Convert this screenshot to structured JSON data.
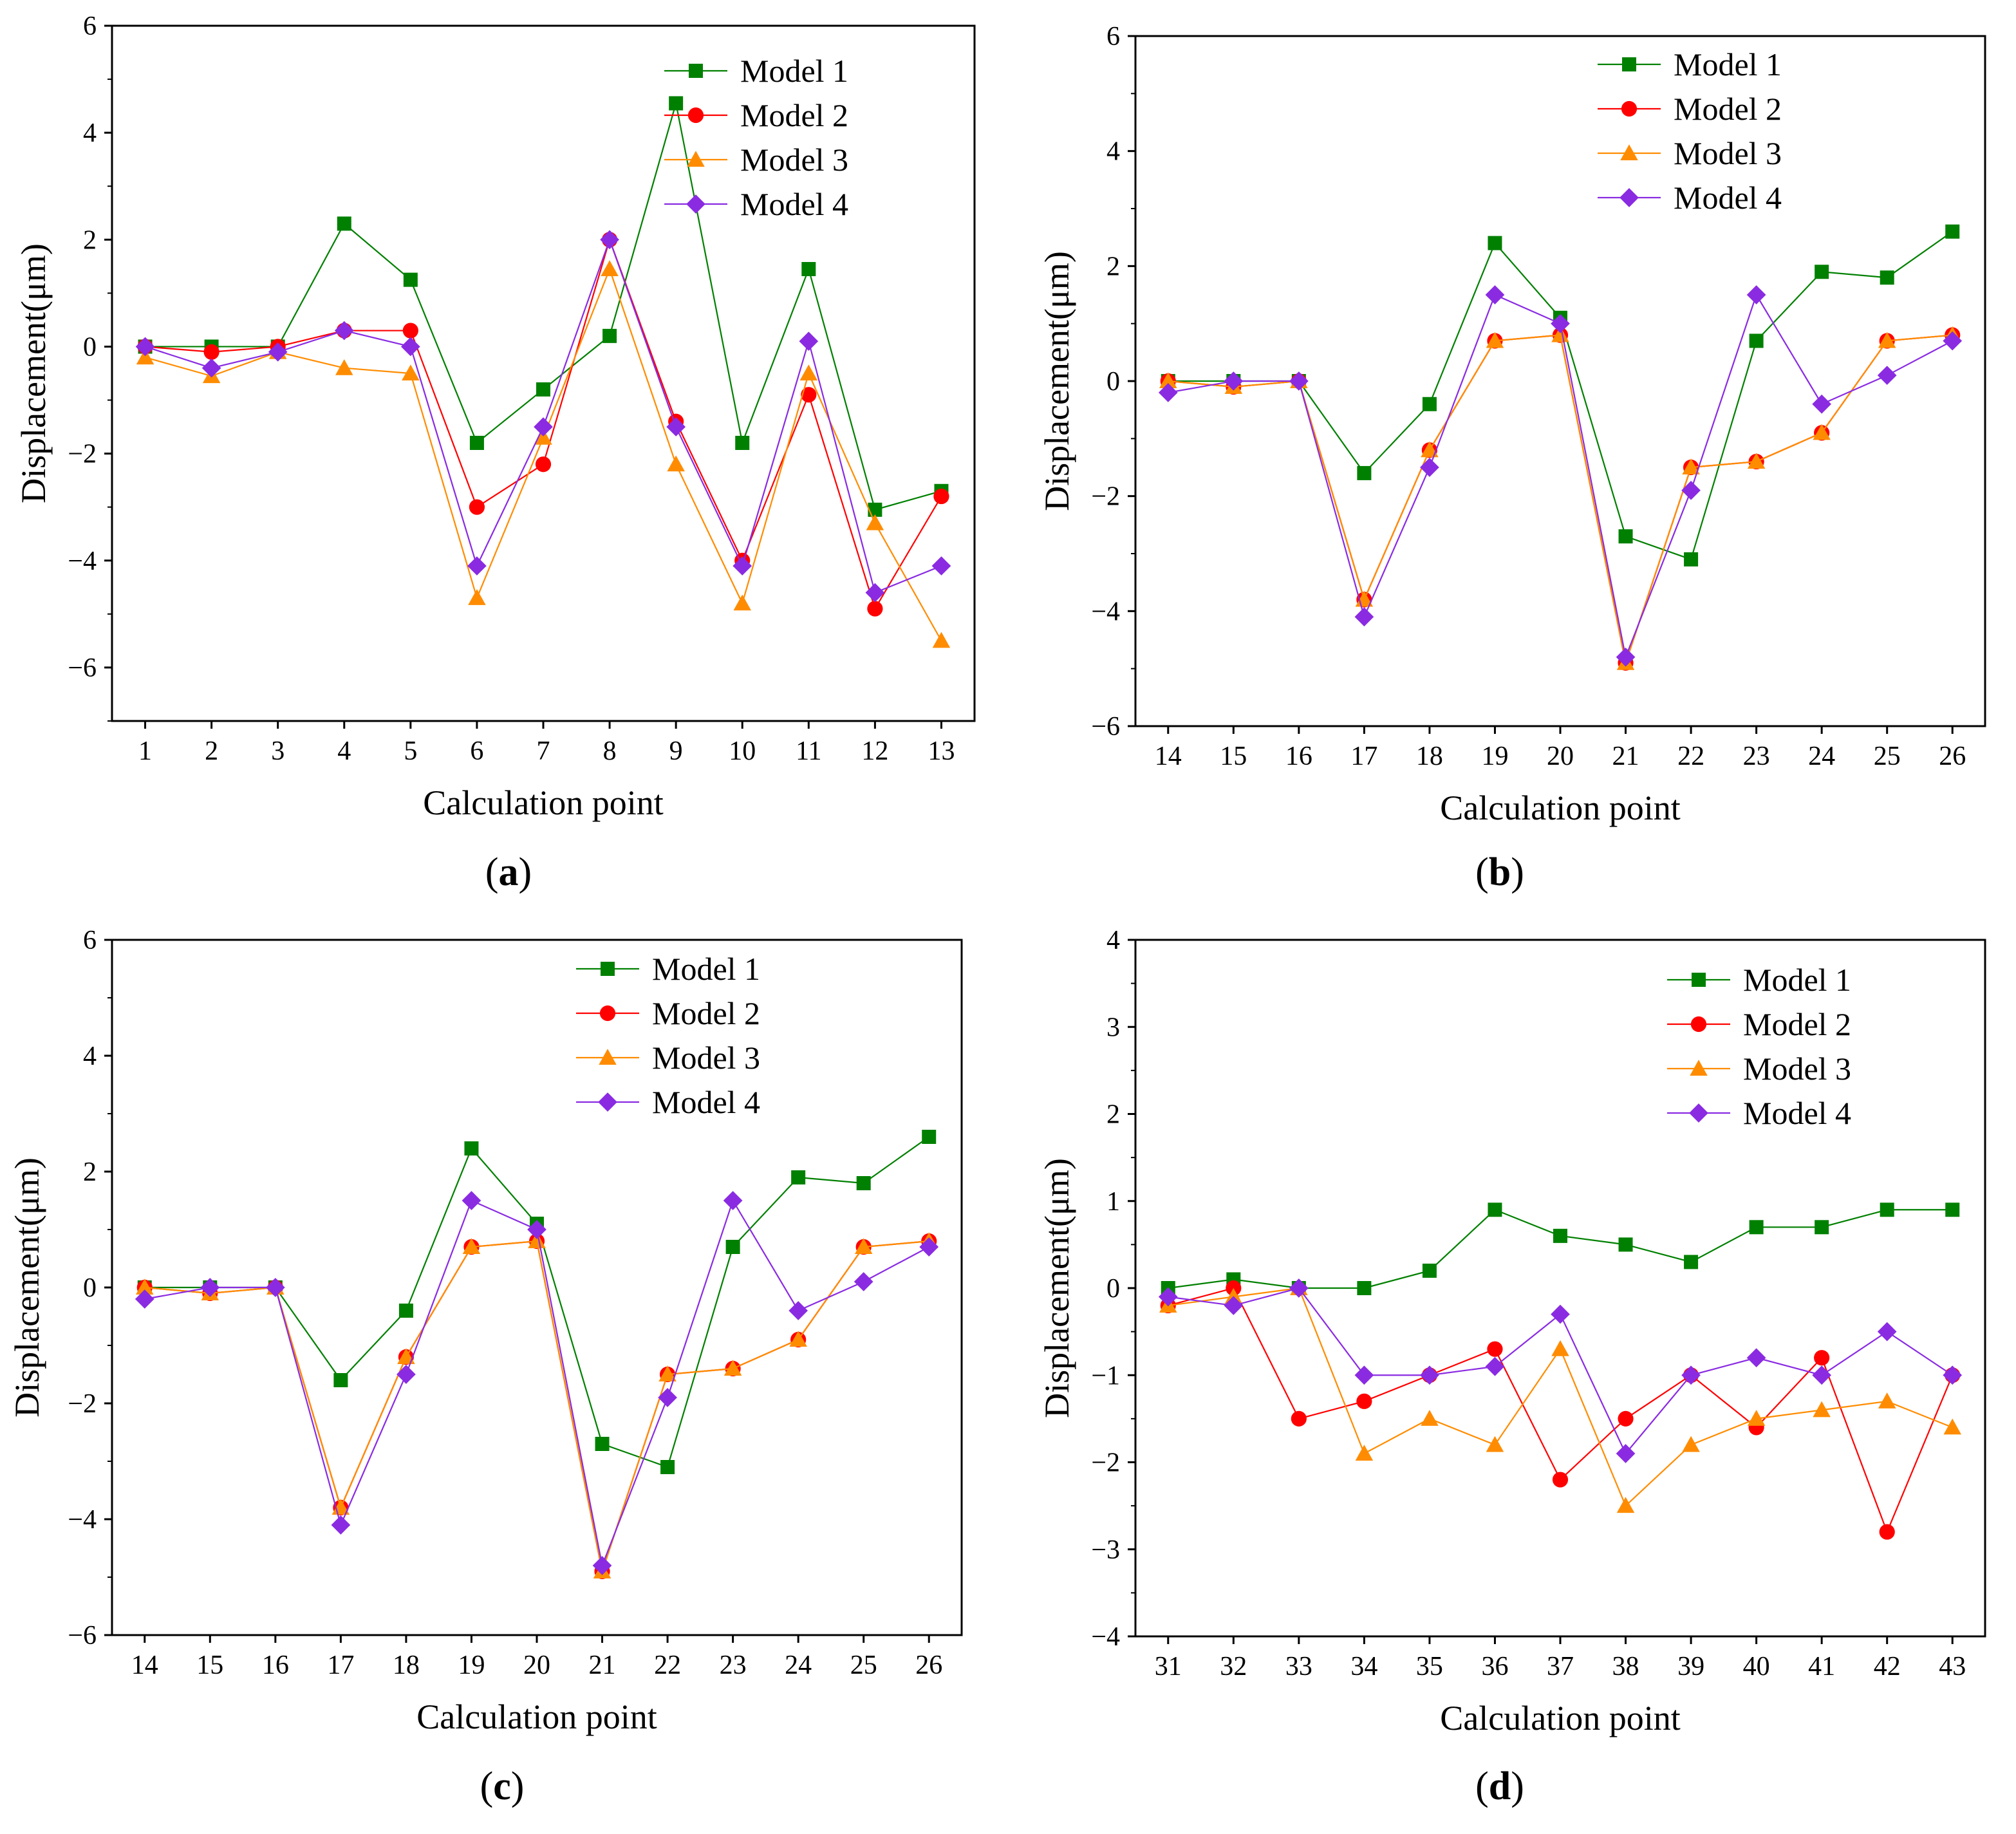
{
  "xlabel": "Calculation point",
  "ylabel": "Displacement(μm)",
  "legend_position": "top-right",
  "series_styles": [
    {
      "name": "Model 1",
      "color": "#008000",
      "marker": "square"
    },
    {
      "name": "Model 2",
      "color": "#ff0000",
      "marker": "circle"
    },
    {
      "name": "Model 3",
      "color": "#ff8c00",
      "marker": "triangle"
    },
    {
      "name": "Model 4",
      "color": "#8a2be2",
      "marker": "diamond"
    }
  ],
  "chart_data": [
    {
      "type": "line",
      "panel_label": "a",
      "title": "",
      "xlabel": "Calculation point",
      "ylabel": "Displacement(μm)",
      "x": [
        1,
        2,
        3,
        4,
        5,
        6,
        7,
        8,
        9,
        10,
        11,
        12,
        13
      ],
      "ylim": [
        -7,
        6
      ],
      "yticks": [
        -6,
        -4,
        -2,
        0,
        2,
        4,
        6
      ],
      "series": [
        {
          "name": "Model 1",
          "values": [
            0,
            0,
            0,
            2.3,
            1.25,
            -1.8,
            -0.8,
            0.2,
            4.55,
            -1.8,
            1.45,
            -3.05,
            -2.7
          ]
        },
        {
          "name": "Model 2",
          "values": [
            0,
            -0.1,
            0,
            0.3,
            0.3,
            -3.0,
            -2.2,
            2.0,
            -1.4,
            -4.0,
            -0.9,
            -4.9,
            -2.8
          ]
        },
        {
          "name": "Model 3",
          "values": [
            -0.2,
            -0.55,
            -0.1,
            -0.4,
            -0.5,
            -4.7,
            -1.7,
            1.45,
            -2.2,
            -4.8,
            -0.5,
            -3.3,
            -5.5
          ]
        },
        {
          "name": "Model 4",
          "values": [
            0,
            -0.4,
            -0.1,
            0.3,
            0,
            -4.1,
            -1.5,
            2.0,
            -1.5,
            -4.1,
            0.1,
            -4.6,
            -4.1
          ]
        }
      ]
    },
    {
      "type": "line",
      "panel_label": "b",
      "title": "",
      "xlabel": "Calculation point",
      "ylabel": "Displacement(μm)",
      "x": [
        14,
        15,
        16,
        17,
        18,
        19,
        20,
        21,
        22,
        23,
        24,
        25,
        26
      ],
      "ylim": [
        -6,
        6
      ],
      "yticks": [
        -6,
        -4,
        -2,
        0,
        2,
        4,
        6
      ],
      "series": [
        {
          "name": "Model 1",
          "values": [
            0,
            0,
            0,
            -1.6,
            -0.4,
            2.4,
            1.1,
            -2.7,
            -3.1,
            0.7,
            1.9,
            1.8,
            2.6
          ]
        },
        {
          "name": "Model 2",
          "values": [
            0,
            -0.1,
            0,
            -3.8,
            -1.2,
            0.7,
            0.8,
            -4.9,
            -1.5,
            -1.4,
            -0.9,
            0.7,
            0.8
          ]
        },
        {
          "name": "Model 3",
          "values": [
            0,
            -0.1,
            0,
            -3.8,
            -1.2,
            0.7,
            0.8,
            -4.9,
            -1.5,
            -1.4,
            -0.9,
            0.7,
            0.8
          ]
        },
        {
          "name": "Model 4",
          "values": [
            -0.2,
            0,
            0,
            -4.1,
            -1.5,
            1.5,
            1.0,
            -4.8,
            -1.9,
            1.5,
            -0.4,
            0.1,
            0.7
          ]
        }
      ]
    },
    {
      "type": "line",
      "panel_label": "c",
      "title": "",
      "xlabel": "Calculation point",
      "ylabel": "Displacement(μm)",
      "x": [
        14,
        15,
        16,
        17,
        18,
        19,
        20,
        21,
        22,
        23,
        24,
        25,
        26
      ],
      "ylim": [
        -6,
        6
      ],
      "yticks": [
        -6,
        -4,
        -2,
        0,
        2,
        4,
        6
      ],
      "series": [
        {
          "name": "Model 1",
          "values": [
            0,
            0,
            0,
            -1.6,
            -0.4,
            2.4,
            1.1,
            -2.7,
            -3.1,
            0.7,
            1.9,
            1.8,
            2.6
          ]
        },
        {
          "name": "Model 2",
          "values": [
            0,
            -0.1,
            0,
            -3.8,
            -1.2,
            0.7,
            0.8,
            -4.9,
            -1.5,
            -1.4,
            -0.9,
            0.7,
            0.8
          ]
        },
        {
          "name": "Model 3",
          "values": [
            0,
            -0.1,
            0,
            -3.8,
            -1.2,
            0.7,
            0.8,
            -4.9,
            -1.5,
            -1.4,
            -0.9,
            0.7,
            0.8
          ]
        },
        {
          "name": "Model 4",
          "values": [
            -0.2,
            0,
            0,
            -4.1,
            -1.5,
            1.5,
            1.0,
            -4.8,
            -1.9,
            1.5,
            -0.4,
            0.1,
            0.7
          ]
        }
      ]
    },
    {
      "type": "line",
      "panel_label": "d",
      "title": "",
      "xlabel": "Calculation point",
      "ylabel": "Displacement(μm)",
      "x": [
        31,
        32,
        33,
        34,
        35,
        36,
        37,
        38,
        39,
        40,
        41,
        42,
        43
      ],
      "ylim": [
        -4,
        4
      ],
      "yticks": [
        -4,
        -3,
        -2,
        -1,
        0,
        1,
        2,
        3,
        4
      ],
      "series": [
        {
          "name": "Model 1",
          "values": [
            0,
            0.1,
            0,
            0,
            0.2,
            0.9,
            0.6,
            0.5,
            0.3,
            0.7,
            0.7,
            0.9,
            0.9
          ]
        },
        {
          "name": "Model 2",
          "values": [
            -0.2,
            0,
            -1.5,
            -1.3,
            -1.0,
            -0.7,
            -2.2,
            -1.5,
            -1.0,
            -1.6,
            -0.8,
            -2.8,
            -1.0
          ]
        },
        {
          "name": "Model 3",
          "values": [
            -0.2,
            -0.1,
            0,
            -1.9,
            -1.5,
            -1.8,
            -0.7,
            -2.5,
            -1.8,
            -1.5,
            -1.4,
            -1.3,
            -1.6
          ]
        },
        {
          "name": "Model 4",
          "values": [
            -0.1,
            -0.2,
            0,
            -1.0,
            -1.0,
            -0.9,
            -0.3,
            -1.9,
            -1.0,
            -0.8,
            -1.0,
            -0.5,
            -1.0
          ]
        }
      ]
    }
  ]
}
